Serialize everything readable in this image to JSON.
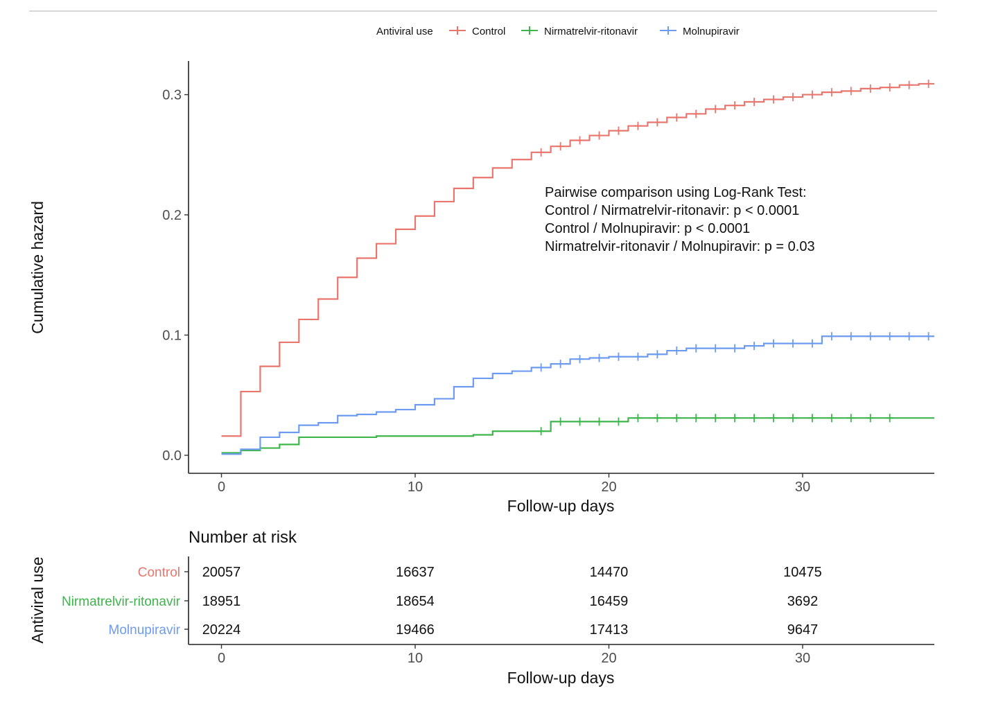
{
  "chart_data": {
    "type": "line",
    "subtype": "cumulative-hazard-step",
    "legend": {
      "title": "Antiviral use",
      "position": "top",
      "entries": [
        "Control",
        "Nirmatrelvir-ritonavir",
        "Molnupiravir"
      ]
    },
    "xlabel": "Follow-up days",
    "ylabel": "Cumulative hazard",
    "xlim": [
      -1.7,
      36.8
    ],
    "ylim": [
      -0.015,
      0.328
    ],
    "xticks": [
      0,
      10,
      20,
      30
    ],
    "xtick_labels": [
      "0",
      "10",
      "20",
      "30"
    ],
    "yticks": [
      0.0,
      0.1,
      0.2,
      0.3
    ],
    "ytick_labels": [
      "0.0",
      "0.1",
      "0.2",
      "0.3"
    ],
    "series": [
      {
        "name": "Control",
        "color": "#E8766D",
        "steps": [
          [
            0,
            0.016
          ],
          [
            1,
            0.053
          ],
          [
            2,
            0.074
          ],
          [
            3,
            0.094
          ],
          [
            4,
            0.113
          ],
          [
            5,
            0.13
          ],
          [
            6,
            0.148
          ],
          [
            7,
            0.164
          ],
          [
            8,
            0.176
          ],
          [
            9,
            0.188
          ],
          [
            10,
            0.199
          ],
          [
            11,
            0.211
          ],
          [
            12,
            0.222
          ],
          [
            13,
            0.231
          ],
          [
            14,
            0.239
          ],
          [
            15,
            0.246
          ],
          [
            16,
            0.252
          ],
          [
            17,
            0.257
          ],
          [
            18,
            0.262
          ],
          [
            19,
            0.266
          ],
          [
            20,
            0.27
          ],
          [
            21,
            0.274
          ],
          [
            22,
            0.277
          ],
          [
            23,
            0.281
          ],
          [
            24,
            0.284
          ],
          [
            25,
            0.288
          ],
          [
            26,
            0.291
          ],
          [
            27,
            0.294
          ],
          [
            28,
            0.296
          ],
          [
            29,
            0.298
          ],
          [
            30,
            0.3
          ],
          [
            31,
            0.302
          ],
          [
            32,
            0.303
          ],
          [
            33,
            0.305
          ],
          [
            34,
            0.306
          ],
          [
            35,
            0.308
          ],
          [
            36,
            0.309
          ]
        ],
        "end_x": 36.8,
        "censor_marks": [
          16,
          17,
          18,
          19,
          20,
          21,
          22,
          23,
          24,
          25,
          26,
          27,
          28,
          29,
          30,
          31,
          32,
          33,
          34,
          35,
          36
        ]
      },
      {
        "name": "Nirmatrelvir-ritonavir",
        "color": "#3DB54A",
        "steps": [
          [
            0,
            0.002
          ],
          [
            1,
            0.004
          ],
          [
            2,
            0.006
          ],
          [
            3,
            0.009
          ],
          [
            4,
            0.015
          ],
          [
            8,
            0.016
          ],
          [
            13,
            0.017
          ],
          [
            14,
            0.02
          ],
          [
            17,
            0.028
          ],
          [
            21,
            0.031
          ],
          [
            36,
            0.031
          ]
        ],
        "end_x": 36.8,
        "censor_marks": [
          16,
          17,
          18,
          19,
          20,
          21,
          22,
          23,
          24,
          25,
          26,
          27,
          28,
          29,
          30,
          31,
          32,
          33,
          34
        ]
      },
      {
        "name": "Molnupiravir",
        "color": "#6C9BF0",
        "steps": [
          [
            0,
            0.001
          ],
          [
            1,
            0.005
          ],
          [
            2,
            0.015
          ],
          [
            3,
            0.019
          ],
          [
            4,
            0.025
          ],
          [
            5,
            0.027
          ],
          [
            6,
            0.033
          ],
          [
            7,
            0.034
          ],
          [
            8,
            0.036
          ],
          [
            9,
            0.038
          ],
          [
            10,
            0.042
          ],
          [
            11,
            0.047
          ],
          [
            12,
            0.057
          ],
          [
            13,
            0.064
          ],
          [
            14,
            0.068
          ],
          [
            15,
            0.07
          ],
          [
            16,
            0.073
          ],
          [
            17,
            0.076
          ],
          [
            18,
            0.08
          ],
          [
            19,
            0.081
          ],
          [
            20,
            0.082
          ],
          [
            21,
            0.082
          ],
          [
            22,
            0.084
          ],
          [
            23,
            0.087
          ],
          [
            24,
            0.089
          ],
          [
            25,
            0.089
          ],
          [
            26,
            0.089
          ],
          [
            27,
            0.091
          ],
          [
            28,
            0.093
          ],
          [
            29,
            0.093
          ],
          [
            30,
            0.093
          ],
          [
            31,
            0.099
          ],
          [
            32,
            0.099
          ],
          [
            33,
            0.099
          ],
          [
            34,
            0.099
          ],
          [
            35,
            0.099
          ],
          [
            36,
            0.099
          ]
        ],
        "end_x": 36.8,
        "censor_marks": [
          16,
          17,
          18,
          19,
          20,
          21,
          22,
          23,
          24,
          25,
          26,
          27,
          28,
          29,
          30,
          31,
          32,
          33,
          34,
          35,
          36
        ]
      }
    ],
    "annotation": [
      "Pairwise comparison using Log-Rank Test:",
      "Control / Nirmatrelvir-ritonavir:  p < 0.0001",
      "Control / Molnupiravir:  p < 0.0001",
      "Nirmatrelvir-ritonavir  / Molnupiravir:  p = 0.03"
    ],
    "risk_table": {
      "title": "Number at risk",
      "ylabel": "Antiviral use",
      "xlabel": "Follow-up days",
      "times": [
        0,
        10,
        20,
        30
      ],
      "rows": [
        {
          "name": "Control",
          "color": "#E8766D",
          "values": [
            "20057",
            "16637",
            "14470",
            "10475"
          ]
        },
        {
          "name": "Nirmatrelvir-ritonavir",
          "color": "#3DB54A",
          "values": [
            "18951",
            "18654",
            "16459",
            "3692"
          ]
        },
        {
          "name": "Molnupiravir",
          "color": "#6C9BF0",
          "values": [
            "20224",
            "19466",
            "17413",
            "9647"
          ]
        }
      ]
    }
  }
}
